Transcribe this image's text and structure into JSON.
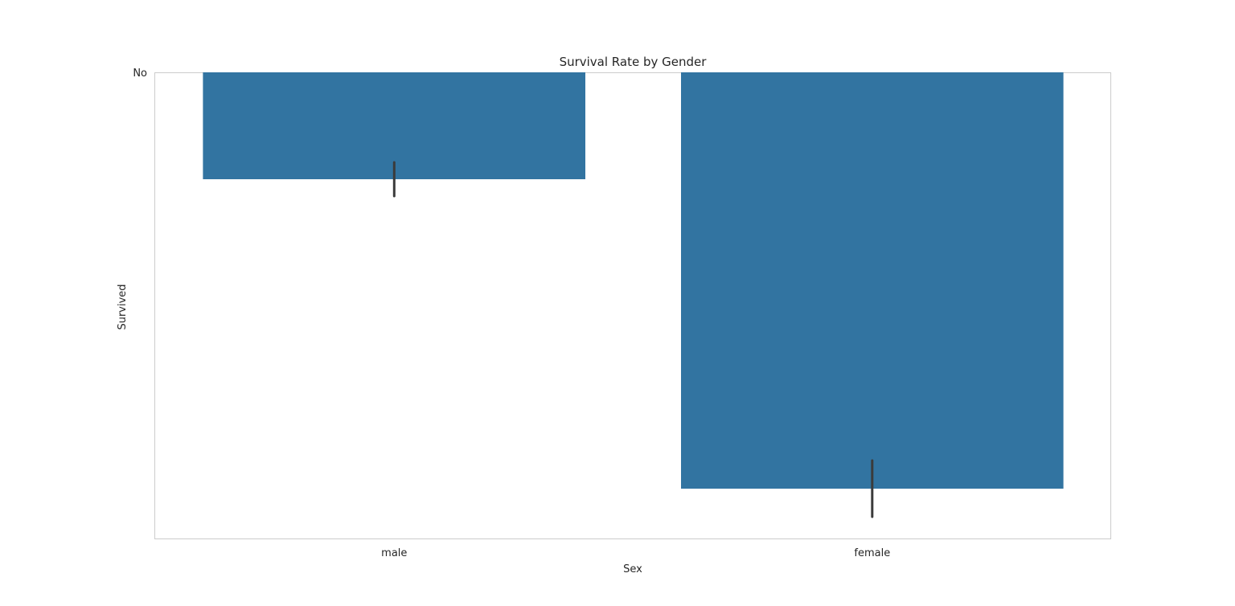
{
  "chart_data": {
    "type": "bar",
    "title": "Survival Rate by Gender",
    "xlabel": "Sex",
    "ylabel": "Survived",
    "categories": [
      "male",
      "female"
    ],
    "values": [
      0.19,
      0.74
    ],
    "error_bars": [
      {
        "low": 0.16,
        "high": 0.22
      },
      {
        "low": 0.69,
        "high": 0.79
      }
    ],
    "ylim": [
      0,
      0.83
    ],
    "y_axis_inverted": true,
    "y_tick_labels": [
      "No"
    ],
    "y_tick_values": [
      0
    ],
    "grid": false,
    "bar_color": "#3274a1",
    "error_bar_color": "#3b3b3b"
  }
}
